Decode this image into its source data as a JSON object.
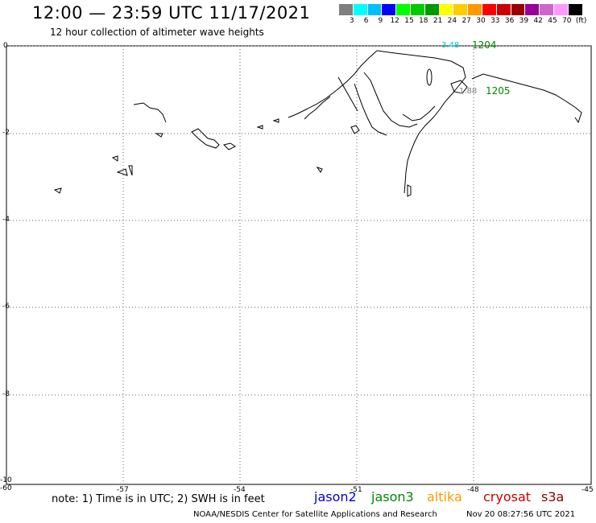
{
  "title": "12:00 — 23:59 UTC 11/17/2021",
  "subtitle": "12 hour collection of altimeter wave heights",
  "color_scale": {
    "colors": [
      "#7f7f7f",
      "#00ffff",
      "#00bfff",
      "#0000ff",
      "#00ff00",
      "#00cc00",
      "#009900",
      "#ffff00",
      "#ffcc00",
      "#ff9900",
      "#ff0000",
      "#cc0000",
      "#990000",
      "#990099",
      "#cc66cc",
      "#ff99ff",
      "#000000"
    ],
    "labels": [
      "3",
      "6",
      "9",
      "12",
      "15",
      "18",
      "21",
      "24",
      "27",
      "30",
      "33",
      "36",
      "39",
      "42",
      "45",
      "70",
      "(ft)"
    ]
  },
  "axes": {
    "y_ticks": [
      "0",
      "-2",
      "-4",
      "-6",
      "-8",
      "-10"
    ],
    "x_ticks": [
      "-60",
      "-57",
      "-54",
      "-51",
      "-48",
      "-45"
    ]
  },
  "tracks": [
    {
      "value": "3.48",
      "color": "#00cccc",
      "id": "1204",
      "id_color": "#008800"
    },
    {
      "value": "1.88",
      "color": "#7f7f7f",
      "id": "1205",
      "id_color": "#008800"
    }
  ],
  "note": "note: 1) Time is in UTC; 2) SWH is in feet",
  "legend": [
    {
      "name": "jason2",
      "color": "#0000cc"
    },
    {
      "name": "jason3",
      "color": "#008800"
    },
    {
      "name": "altika",
      "color": "#ff9900"
    },
    {
      "name": "cryosat",
      "color": "#cc0000"
    },
    {
      "name": "s3a",
      "color": "#880000"
    }
  ],
  "credit": "NOAA/NESDIS Center for Satellite Applications and Research",
  "generated": "Nov 20 08:27:56 UTC 2021"
}
